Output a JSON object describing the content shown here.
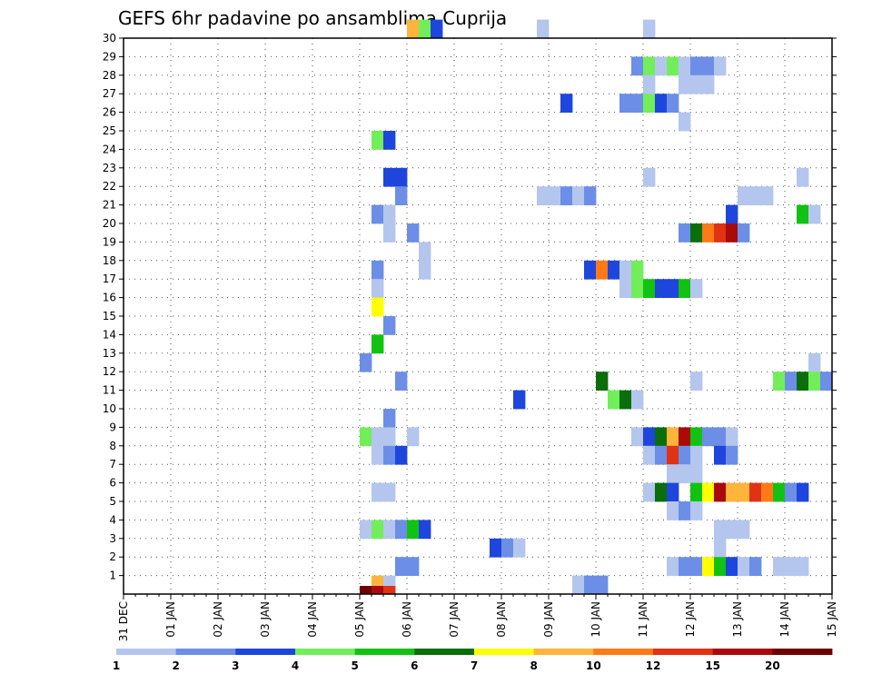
{
  "chart_data": {
    "type": "heatmap",
    "title": "GEFS 6hr padavine po ansamblima Cuprija",
    "x_tick_labels": [
      "31 DEC",
      "01 JAN",
      "02 JAN",
      "03 JAN",
      "04 JAN",
      "05 JAN",
      "06 JAN",
      "07 JAN",
      "08 JAN",
      "09 JAN",
      "10 JAN",
      "11 JAN",
      "12 JAN",
      "13 JAN",
      "14 JAN",
      "15 JAN"
    ],
    "y_tick_labels": [
      "1",
      "2",
      "3",
      "4",
      "5",
      "6",
      "7",
      "8",
      "9",
      "10",
      "11",
      "12",
      "13",
      "14",
      "15",
      "16",
      "17",
      "18",
      "19",
      "20",
      "21",
      "22",
      "23",
      "24",
      "25",
      "26",
      "27",
      "28",
      "29",
      "30"
    ],
    "x_range_days": [
      0,
      15
    ],
    "y_range": [
      0,
      30
    ],
    "grid": true,
    "colorbar": {
      "labels": [
        "1",
        "2",
        "3",
        "4",
        "5",
        "6",
        "7",
        "8",
        "10",
        "12",
        "15",
        "20"
      ],
      "colors": [
        "#b4c6ee",
        "#6c8ee6",
        "#1e46dc",
        "#72ee5a",
        "#12c212",
        "#0a6e0a",
        "#ffff00",
        "#ffb43c",
        "#ff7a14",
        "#e03214",
        "#aa0a0a",
        "#6e0000"
      ]
    },
    "member_0_cells": [
      [
        5.0,
        11
      ],
      [
        5.25,
        10
      ],
      [
        5.5,
        9
      ]
    ],
    "cells": [
      [
        6.0,
        30,
        7
      ],
      [
        6.25,
        30,
        3
      ],
      [
        6.5,
        30,
        2
      ],
      [
        8.75,
        30,
        0
      ],
      [
        11.0,
        30,
        0
      ],
      [
        10.75,
        28,
        1
      ],
      [
        11.0,
        28,
        3
      ],
      [
        11.25,
        28,
        0
      ],
      [
        11.5,
        28,
        3
      ],
      [
        11.75,
        28,
        0
      ],
      [
        12.0,
        28,
        1
      ],
      [
        12.25,
        28,
        1
      ],
      [
        12.5,
        28,
        0
      ],
      [
        11.0,
        27,
        0
      ],
      [
        11.75,
        27,
        0
      ],
      [
        12.0,
        27,
        0
      ],
      [
        12.25,
        27,
        0
      ],
      [
        9.25,
        26,
        2
      ],
      [
        10.5,
        26,
        1
      ],
      [
        10.75,
        26,
        1
      ],
      [
        11.0,
        26,
        3
      ],
      [
        11.25,
        26,
        2
      ],
      [
        11.5,
        26,
        1
      ],
      [
        11.75,
        25,
        0
      ],
      [
        5.25,
        24,
        3
      ],
      [
        5.5,
        24,
        2
      ],
      [
        5.5,
        22,
        2
      ],
      [
        5.75,
        22,
        2
      ],
      [
        11.0,
        22,
        0
      ],
      [
        14.25,
        22,
        0
      ],
      [
        5.75,
        21,
        1
      ],
      [
        8.75,
        21,
        0
      ],
      [
        9.0,
        21,
        0
      ],
      [
        9.25,
        21,
        1
      ],
      [
        9.5,
        21,
        0
      ],
      [
        9.75,
        21,
        1
      ],
      [
        13.0,
        21,
        0
      ],
      [
        13.25,
        21,
        0
      ],
      [
        13.5,
        21,
        0
      ],
      [
        5.25,
        20,
        1
      ],
      [
        5.5,
        20,
        0
      ],
      [
        12.75,
        20,
        2
      ],
      [
        14.25,
        20,
        4
      ],
      [
        14.5,
        20,
        0
      ],
      [
        5.5,
        19,
        0
      ],
      [
        6.0,
        19,
        1
      ],
      [
        11.75,
        19,
        1
      ],
      [
        12.0,
        19,
        5
      ],
      [
        12.25,
        19,
        8
      ],
      [
        12.5,
        19,
        9
      ],
      [
        12.75,
        19,
        10
      ],
      [
        13.0,
        19,
        1
      ],
      [
        6.25,
        18,
        0
      ],
      [
        5.25,
        17,
        1
      ],
      [
        6.25,
        17,
        0
      ],
      [
        9.75,
        17,
        2
      ],
      [
        10.0,
        17,
        8
      ],
      [
        10.25,
        17,
        2
      ],
      [
        10.5,
        17,
        0
      ],
      [
        10.75,
        17,
        3
      ],
      [
        5.25,
        16,
        0
      ],
      [
        10.5,
        16,
        0
      ],
      [
        10.75,
        16,
        3
      ],
      [
        11.0,
        16,
        4
      ],
      [
        11.25,
        16,
        2
      ],
      [
        11.5,
        16,
        2
      ],
      [
        11.75,
        16,
        4
      ],
      [
        12.0,
        16,
        0
      ],
      [
        5.25,
        15,
        6
      ],
      [
        5.5,
        14,
        1
      ],
      [
        5.25,
        13,
        4
      ],
      [
        5.0,
        12,
        1
      ],
      [
        14.5,
        12,
        0
      ],
      [
        5.75,
        11,
        1
      ],
      [
        10.0,
        11,
        5
      ],
      [
        12.0,
        11,
        0
      ],
      [
        13.75,
        11,
        3
      ],
      [
        14.0,
        11,
        1
      ],
      [
        14.25,
        11,
        5
      ],
      [
        14.5,
        11,
        3
      ],
      [
        14.75,
        11,
        1
      ],
      [
        8.25,
        10,
        2
      ],
      [
        10.25,
        10,
        3
      ],
      [
        10.5,
        10,
        5
      ],
      [
        10.75,
        10,
        0
      ],
      [
        5.5,
        9,
        1
      ],
      [
        5.0,
        8,
        3
      ],
      [
        5.25,
        8,
        0
      ],
      [
        5.5,
        8,
        0
      ],
      [
        6.0,
        8,
        0
      ],
      [
        10.75,
        8,
        0
      ],
      [
        11.0,
        8,
        2
      ],
      [
        11.25,
        8,
        5
      ],
      [
        11.5,
        8,
        7
      ],
      [
        11.75,
        8,
        10
      ],
      [
        12.0,
        8,
        4
      ],
      [
        12.25,
        8,
        1
      ],
      [
        12.5,
        8,
        1
      ],
      [
        12.75,
        8,
        0
      ],
      [
        5.25,
        7,
        0
      ],
      [
        5.5,
        7,
        1
      ],
      [
        5.75,
        7,
        2
      ],
      [
        11.0,
        7,
        0
      ],
      [
        11.25,
        7,
        1
      ],
      [
        11.5,
        7,
        9
      ],
      [
        11.75,
        7,
        1
      ],
      [
        12.0,
        7,
        0
      ],
      [
        12.5,
        7,
        2
      ],
      [
        12.75,
        7,
        1
      ],
      [
        11.5,
        6,
        0
      ],
      [
        11.75,
        6,
        0
      ],
      [
        12.0,
        6,
        0
      ],
      [
        5.25,
        5,
        0
      ],
      [
        5.5,
        5,
        0
      ],
      [
        11.0,
        5,
        0
      ],
      [
        11.25,
        5,
        5
      ],
      [
        11.5,
        5,
        2
      ],
      [
        12.0,
        5,
        4
      ],
      [
        12.25,
        5,
        6
      ],
      [
        12.5,
        5,
        10
      ],
      [
        12.75,
        5,
        7
      ],
      [
        13.0,
        5,
        7
      ],
      [
        13.25,
        5,
        9
      ],
      [
        13.5,
        5,
        8
      ],
      [
        13.75,
        5,
        4
      ],
      [
        14.0,
        5,
        1
      ],
      [
        14.25,
        5,
        2
      ],
      [
        11.5,
        4,
        0
      ],
      [
        11.75,
        4,
        1
      ],
      [
        12.0,
        4,
        0
      ],
      [
        5.0,
        3,
        0
      ],
      [
        5.25,
        3,
        3
      ],
      [
        5.5,
        3,
        0
      ],
      [
        5.75,
        3,
        1
      ],
      [
        6.0,
        3,
        4
      ],
      [
        6.25,
        3,
        2
      ],
      [
        12.5,
        3,
        0
      ],
      [
        12.75,
        3,
        0
      ],
      [
        13.0,
        3,
        0
      ],
      [
        7.75,
        2,
        2
      ],
      [
        8.0,
        2,
        1
      ],
      [
        8.25,
        2,
        0
      ],
      [
        12.5,
        2,
        0
      ],
      [
        5.75,
        1,
        1
      ],
      [
        6.0,
        1,
        1
      ],
      [
        11.5,
        1,
        0
      ],
      [
        11.75,
        1,
        1
      ],
      [
        12.0,
        1,
        1
      ],
      [
        12.25,
        1,
        6
      ],
      [
        12.5,
        1,
        4
      ],
      [
        12.75,
        1,
        2
      ],
      [
        13.0,
        1,
        0
      ],
      [
        13.25,
        1,
        1
      ],
      [
        13.75,
        1,
        0
      ],
      [
        14.0,
        1,
        0
      ],
      [
        14.25,
        1,
        0
      ],
      [
        5.25,
        0,
        7
      ],
      [
        5.5,
        0,
        0
      ],
      [
        9.5,
        0,
        0
      ],
      [
        9.75,
        0,
        1
      ],
      [
        10.0,
        0,
        1
      ]
    ]
  }
}
